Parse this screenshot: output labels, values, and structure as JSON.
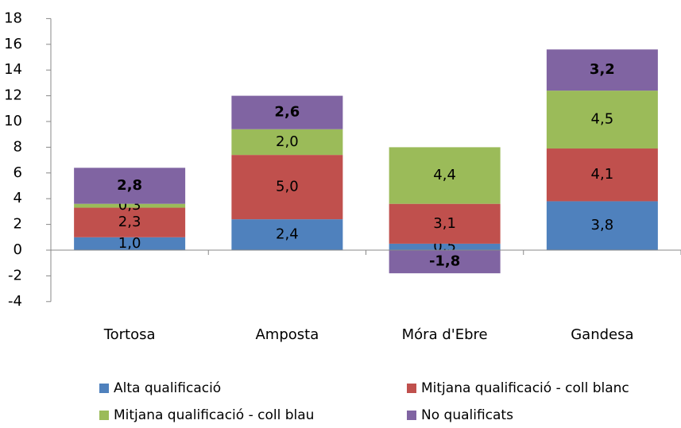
{
  "chart_data": {
    "type": "stacked-bar",
    "categories": [
      "Tortosa",
      "Amposta",
      "Móra d'Ebre",
      "Gandesa"
    ],
    "series": [
      {
        "name": "Alta qualificació",
        "color": "#4f81bd",
        "values": [
          1.0,
          2.4,
          0.5,
          3.8
        ],
        "value_labels": [
          "1,0",
          "2,4",
          "0,5",
          "3,8"
        ]
      },
      {
        "name": "Mitjana qualificació - coll blanc",
        "color": "#c0504d",
        "values": [
          2.3,
          5.0,
          3.1,
          4.1
        ],
        "value_labels": [
          "2,3",
          "5,0",
          "3,1",
          "4,1"
        ]
      },
      {
        "name": "Mitjana qualificació - coll blau",
        "color": "#9bbb59",
        "values": [
          0.3,
          2.0,
          4.4,
          4.5
        ],
        "value_labels": [
          "0,3",
          "2,0",
          "4,4",
          "4,5"
        ]
      },
      {
        "name": "No qualificats",
        "color": "#8064a2",
        "values": [
          2.8,
          2.6,
          -1.8,
          3.2
        ],
        "value_labels": [
          "2,8",
          "2,6",
          "-1,8",
          "3,2"
        ]
      }
    ],
    "ylim": [
      -4,
      18
    ],
    "yticks": [
      -4,
      -2,
      0,
      2,
      4,
      6,
      8,
      10,
      12,
      14,
      16,
      18
    ],
    "grid": false,
    "legend": "bottom"
  }
}
